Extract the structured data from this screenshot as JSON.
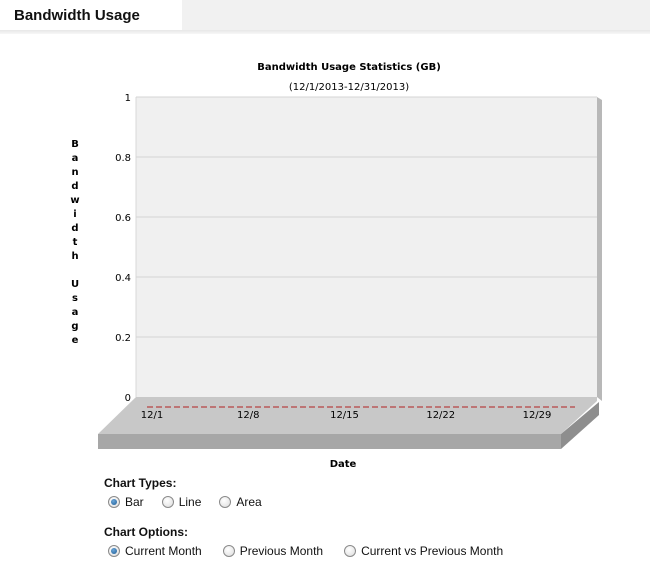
{
  "page": {
    "title": "Bandwidth Usage"
  },
  "chart_data": {
    "type": "bar",
    "title": "Bandwidth Usage Statistics (GB)",
    "subtitle": "(12/1/2013-12/31/2013)",
    "xlabel": "Date",
    "ylabel": "Bandwidth Usage",
    "ylim": [
      0,
      1
    ],
    "yticks": [
      "0",
      "0.2",
      "0.4",
      "0.6",
      "0.8",
      "1"
    ],
    "ytick_values": [
      0,
      0.2,
      0.4,
      0.6,
      0.8,
      1
    ],
    "xticks": [
      "12/1",
      "12/8",
      "12/15",
      "12/22",
      "12/29"
    ],
    "values": [
      0
    ],
    "grid": true,
    "colors": {
      "series": "#b22222",
      "plot_bg": "#f0f0f0",
      "floor": "#c8c8c8",
      "grid": "#d4d4d4"
    }
  },
  "chart_types": {
    "label": "Chart Types:",
    "options": [
      {
        "label": "Bar",
        "checked": true
      },
      {
        "label": "Line",
        "checked": false
      },
      {
        "label": "Area",
        "checked": false
      }
    ]
  },
  "chart_options": {
    "label": "Chart Options:",
    "options": [
      {
        "label": "Current Month",
        "checked": true
      },
      {
        "label": "Previous Month",
        "checked": false
      },
      {
        "label": "Current vs Previous Month",
        "checked": false
      }
    ]
  }
}
